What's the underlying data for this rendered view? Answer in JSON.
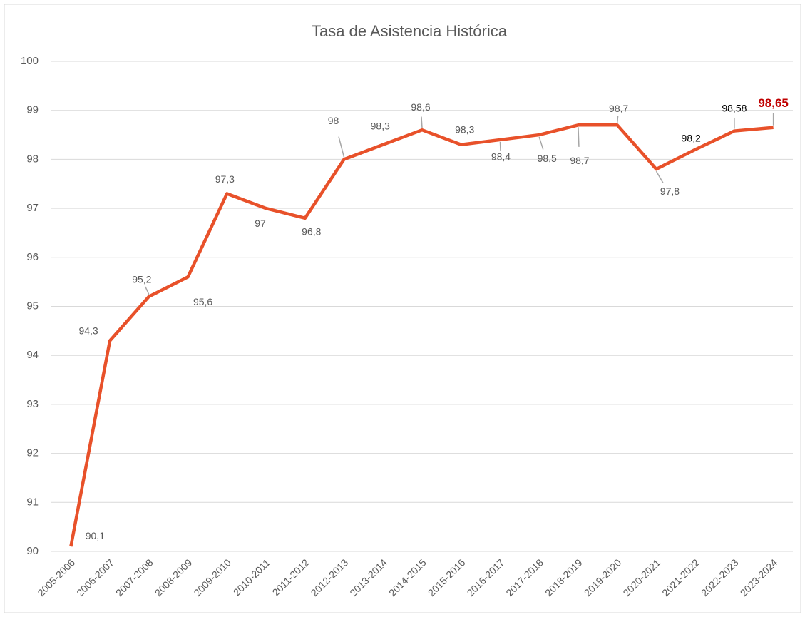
{
  "chart_data": {
    "type": "line",
    "title": "Tasa de Asistencia Histórica",
    "categories": [
      "2005-2006",
      "2006-2007",
      "2007-2008",
      "2008-2009",
      "2009-2010",
      "2010-2011",
      "2011-2012",
      "2012-2013",
      "2013-2014",
      "2014-2015",
      "2015-2016",
      "2016-2017",
      "2017-2018",
      "2018-2019",
      "2019-2020",
      "2020-2021",
      "2021-2022",
      "2022-2023",
      "2023-2024"
    ],
    "series": [
      {
        "name": "Tasa de Asistencia",
        "color": "#e8512a",
        "values": [
          90.1,
          94.3,
          95.2,
          95.6,
          97.3,
          97,
          96.8,
          98,
          98.3,
          98.6,
          98.3,
          98.4,
          98.5,
          98.7,
          98.7,
          97.8,
          98.2,
          98.58,
          98.65
        ],
        "value_labels": [
          "90,1",
          "94,3",
          "95,2",
          "95,6",
          "97,3",
          "97",
          "96,8",
          "98",
          "98,3",
          "98,6",
          "98,3",
          "98,4",
          "98,5",
          "98,7",
          "98,7",
          "97,8",
          "98,2",
          "98,58",
          "98,65"
        ]
      }
    ],
    "ylim": [
      90,
      100
    ],
    "yticks": [
      90,
      91,
      92,
      93,
      94,
      95,
      96,
      97,
      98,
      99,
      100
    ],
    "grid": true
  }
}
